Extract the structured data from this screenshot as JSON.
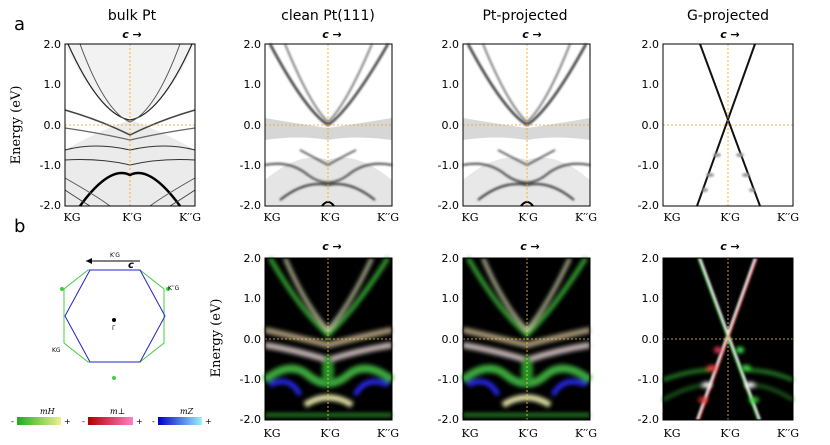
{
  "figure": {
    "panel_a_label": "a",
    "panel_b_label": "b",
    "energy_axis_label": "Energy (eV)",
    "c_arrow_label": "c →",
    "colorbar_minus": "-",
    "colorbar_plus": "+"
  },
  "top_row": [
    {
      "title": "bulk Pt"
    },
    {
      "title": "clean Pt(111)"
    },
    {
      "title": "Pt-projected"
    },
    {
      "title": "G-projected"
    }
  ],
  "bottom_row": [
    {
      "title": "clean Pt(111)"
    },
    {
      "title": "Pt-projected"
    },
    {
      "title": "G-projected"
    }
  ],
  "bz": {
    "k_top": "K′G",
    "k_right": "K′′G",
    "k_left": "KG",
    "gamma": "Γ",
    "c_label": "c"
  },
  "colorbars": [
    {
      "label": "mH",
      "from": "#22aa22",
      "to": "#f0f090"
    },
    {
      "label": "m⊥",
      "from": "#b00000",
      "to": "#ff80c8"
    },
    {
      "label": "mZ",
      "from": "#0000c0",
      "to": "#a0f0ff"
    }
  ],
  "chart_data": {
    "type": "band_structure_heatmap",
    "ylabel": "Energy (eV)",
    "ylim": [
      -2.0,
      2.0
    ],
    "yticks": [
      "2.0",
      "1.0",
      "0.0",
      "-1.0",
      "-2.0"
    ],
    "xticks": [
      "KG",
      "K′G",
      "K′′G"
    ],
    "fermi_level": 0.0
  }
}
